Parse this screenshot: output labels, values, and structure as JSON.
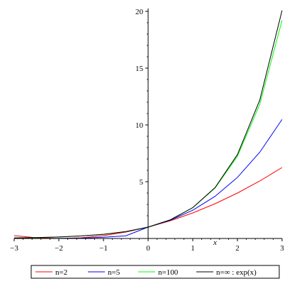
{
  "chart_data": {
    "type": "line",
    "title": "",
    "xlabel": "x",
    "ylabel": "",
    "xlim": [
      -3,
      3
    ],
    "ylim": [
      0,
      20
    ],
    "xticks": [
      -3,
      -2,
      -1,
      0,
      1,
      2,
      3
    ],
    "xtick_labels": [
      "−3",
      "−2",
      "−1",
      "0",
      "1",
      "2",
      "3"
    ],
    "yticks": [
      5,
      10,
      15,
      20
    ],
    "ytick_labels": [
      "5",
      "10",
      "15",
      "20"
    ],
    "grid": false,
    "legend_position": "bottom",
    "x": [
      -3,
      -2.5,
      -2,
      -1.5,
      -1,
      -0.5,
      0,
      0.5,
      1,
      1.5,
      2,
      2.5,
      3
    ],
    "series": [
      {
        "name": "n=2",
        "color": "#ff0000",
        "values": [
          0.25,
          0.0625,
          0,
          0.0625,
          0.25,
          0.5625,
          1,
          1.5625,
          2.25,
          3.0625,
          4,
          5.0625,
          6.25
        ]
      },
      {
        "name": "n=5",
        "color": "#0000ff",
        "values": [
          0.001,
          0.001,
          0.006,
          0.0313,
          0.1073,
          0.2373,
          1,
          1.6105,
          2.4883,
          3.7129,
          5.3782,
          7.5938,
          10.4858
        ]
      },
      {
        "name": "n=100",
        "color": "#00ff00",
        "values": [
          0.0476,
          0.0793,
          0.1326,
          0.2215,
          0.366,
          0.6035,
          1,
          1.6446,
          2.7048,
          4.4484,
          7.2446,
          11.8103,
          19.2186
        ]
      },
      {
        "name": "n=∞ : exp(x)",
        "color": "#000000",
        "values": [
          0.0498,
          0.0821,
          0.1353,
          0.2231,
          0.3679,
          0.6065,
          1,
          1.6487,
          2.7183,
          4.4817,
          7.3891,
          12.1825,
          20.0855
        ]
      }
    ]
  }
}
